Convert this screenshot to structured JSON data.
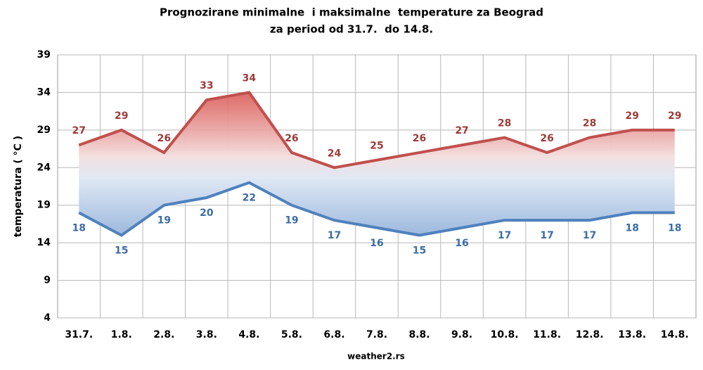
{
  "chart_data": {
    "type": "range-line",
    "title": "Prognozirane minimalne  i maksimalne  temperature za Beograd",
    "subtitle": "za period od 31.7.  do 14.8.",
    "y_label": "temperatura ( °C )",
    "source": "weather2.rs",
    "categories": [
      "31.7.",
      "1.8.",
      "2.8.",
      "3.8.",
      "4.8.",
      "5.8.",
      "6.8.",
      "7.8.",
      "8.8.",
      "9.8.",
      "10.8.",
      "11.8.",
      "12.8.",
      "13.8.",
      "14.8."
    ],
    "series": [
      {
        "name": "maksimalne",
        "color": "#c0504d",
        "values": [
          27,
          29,
          26,
          33,
          34,
          26,
          24,
          25,
          26,
          27,
          28,
          26,
          28,
          29,
          29
        ]
      },
      {
        "name": "minimalne",
        "color": "#4f81bd",
        "values": [
          18,
          15,
          19,
          20,
          22,
          19,
          17,
          16,
          15,
          16,
          17,
          17,
          17,
          18,
          18
        ]
      }
    ],
    "ylim": [
      4,
      39
    ],
    "yticks": [
      4,
      9,
      14,
      19,
      24,
      29,
      34,
      39
    ],
    "grid": true
  }
}
